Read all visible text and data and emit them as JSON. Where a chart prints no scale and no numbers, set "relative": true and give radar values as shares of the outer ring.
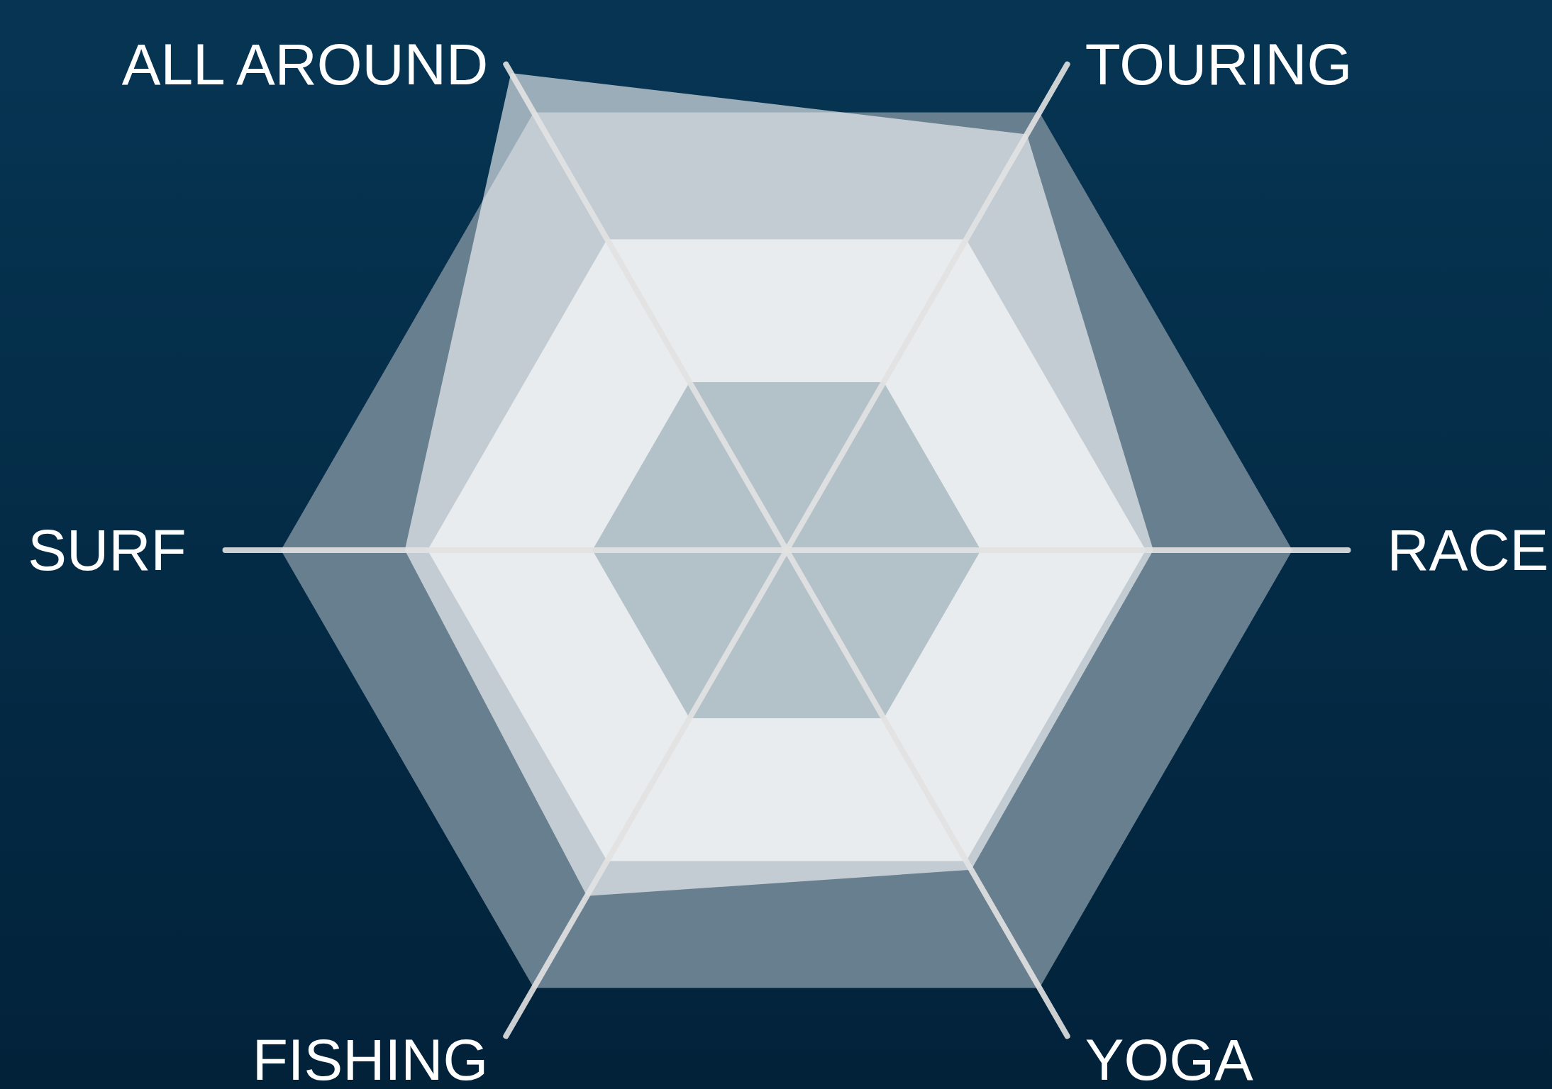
{
  "chart_data": {
    "type": "radar",
    "relative": true,
    "grid": true,
    "categories": [
      "TOURING",
      "RACE",
      "YOGA",
      "FISHING",
      "SURF",
      "ALL AROUND"
    ],
    "series": [
      {
        "color": "#ffffff",
        "values": [
          0.95,
          0.725,
          0.73,
          0.79,
          0.755,
          1.09
        ]
      }
    ]
  }
}
